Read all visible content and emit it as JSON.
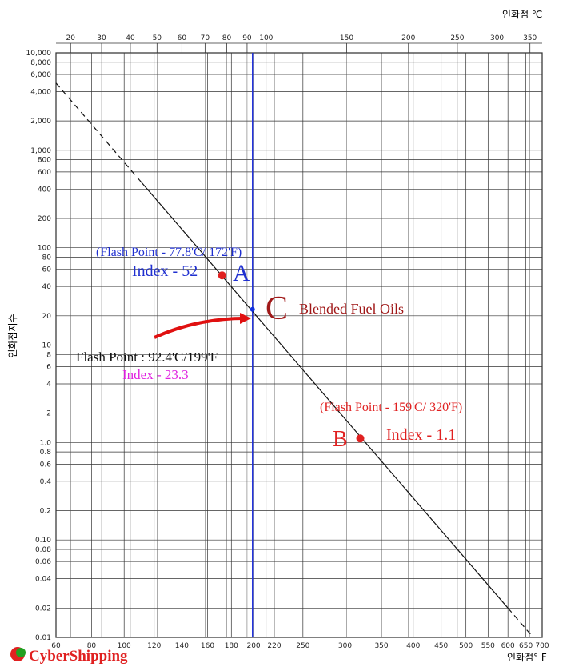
{
  "chart_data": {
    "type": "nomogram",
    "x_label": "인화점° F",
    "x2_label": "인화점 ℃",
    "y_label": "인화점지수",
    "log_y": true,
    "grid": true,
    "xlim": [
      60,
      700
    ],
    "xticks": [
      60,
      80,
      100,
      120,
      140,
      160,
      180,
      200,
      220,
      250,
      300,
      350,
      400,
      450,
      500,
      550,
      600,
      650,
      700
    ],
    "x2ticks": [
      20,
      30,
      40,
      50,
      60,
      70,
      80,
      90,
      100,
      150,
      200,
      250,
      300,
      350
    ],
    "ylim": [
      0.01,
      10000
    ],
    "yticks": [
      {
        "value": 10000,
        "label": "10,000"
      },
      {
        "value": 8000,
        "label": "8,000"
      },
      {
        "value": 6000,
        "label": "6,000"
      },
      {
        "value": 4000,
        "label": "4,000"
      },
      {
        "value": 2000,
        "label": "2,000"
      },
      {
        "value": 1000,
        "label": "1,000"
      },
      800,
      600,
      400,
      200,
      100,
      80,
      60,
      40,
      20,
      10,
      8,
      6,
      4,
      2,
      {
        "value": 1,
        "label": "1.0"
      },
      0.8,
      0.6,
      0.4,
      0.2,
      {
        "value": 0.1,
        "label": "0.10"
      },
      0.08,
      0.06,
      0.04,
      0.02,
      0.01
    ],
    "line": {
      "x": [
        60,
        110,
        600,
        672
      ],
      "values": [
        4900,
        495,
        0.02,
        0.01
      ],
      "color": "#111111"
    },
    "points": {
      "x": [
        172,
        199,
        320
      ],
      "values": [
        52,
        23.3,
        1.1
      ],
      "colors": [
        "#e02020",
        "#1030e0",
        "#e02020"
      ]
    },
    "marker_line": {
      "x": 199,
      "color": "#2030e0"
    },
    "annotations": [
      "(Flash Point - 77.8'C/ 172'F)",
      "Index - 52",
      "A",
      "C",
      "Blended Fuel Oils",
      "Flash Point : 92.4'C/199'F",
      "Index - 23.3",
      "(Flash Point - 159'C/ 320'F)",
      "B",
      "Index - 1.1"
    ],
    "watermark": "CyberShipping"
  }
}
